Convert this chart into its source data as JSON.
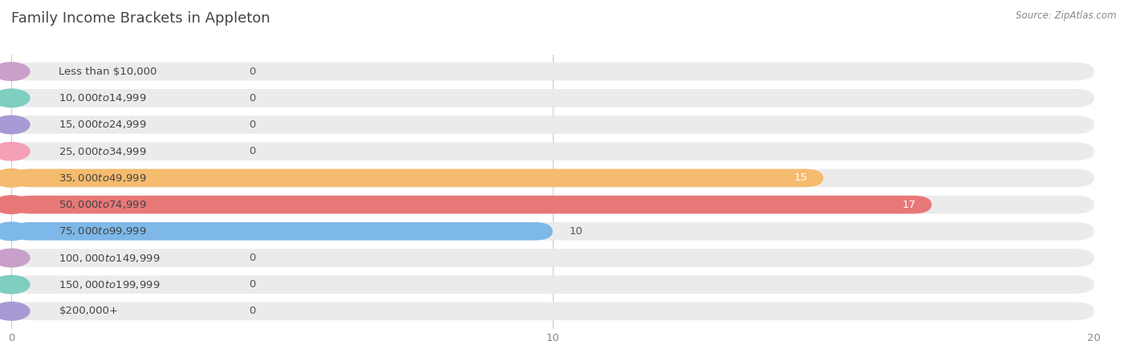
{
  "title": "Family Income Brackets in Appleton",
  "source": "Source: ZipAtlas.com",
  "categories": [
    "Less than $10,000",
    "$10,000 to $14,999",
    "$15,000 to $24,999",
    "$25,000 to $34,999",
    "$35,000 to $49,999",
    "$50,000 to $74,999",
    "$75,000 to $99,999",
    "$100,000 to $149,999",
    "$150,000 to $199,999",
    "$200,000+"
  ],
  "values": [
    0,
    0,
    0,
    0,
    15,
    17,
    10,
    0,
    0,
    0
  ],
  "bar_colors": [
    "#c9a0c9",
    "#7ecfc0",
    "#a89ad4",
    "#f4a0b5",
    "#f5bb6e",
    "#e87878",
    "#7db8e8",
    "#c9a0c9",
    "#7ecfc0",
    "#a89ad4"
  ],
  "xlim": [
    0,
    20
  ],
  "xticks": [
    0,
    10,
    20
  ],
  "background_color": "#ffffff",
  "bar_bg_color": "#ebebeb",
  "title_fontsize": 13,
  "label_fontsize": 9.5,
  "tick_fontsize": 9.5,
  "value_color_inside": "#ffffff",
  "value_color_outside": "#555555",
  "grid_color": "#cccccc",
  "title_color": "#444444",
  "source_color": "#888888",
  "label_color": "#444444"
}
